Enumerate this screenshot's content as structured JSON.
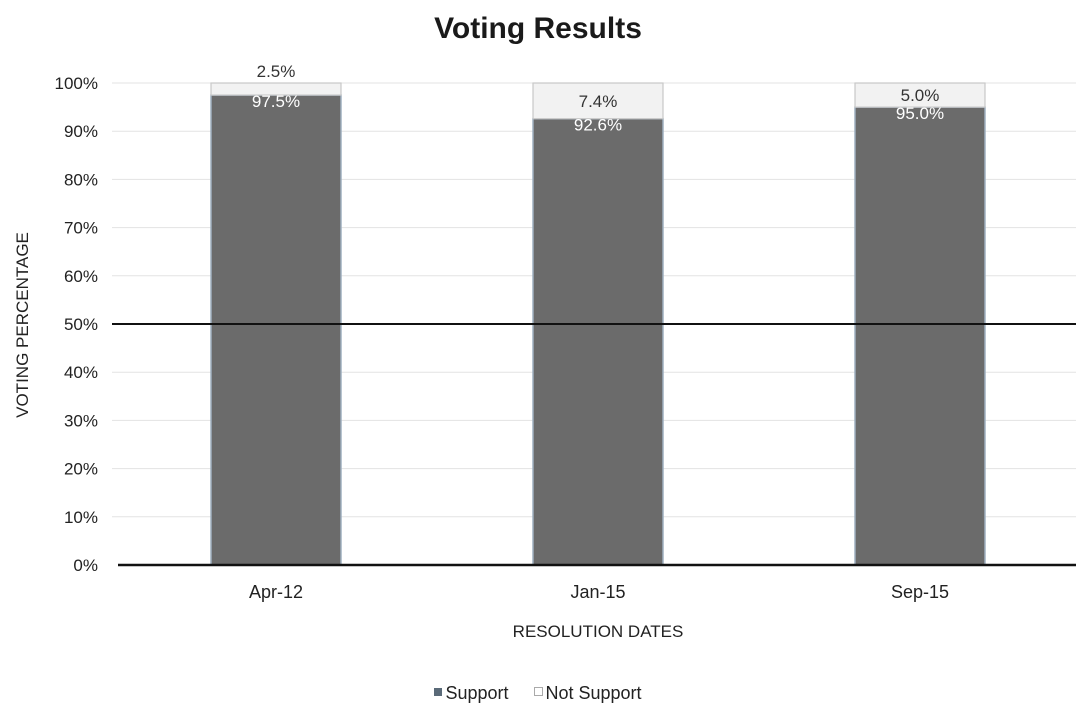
{
  "chart_data": {
    "type": "bar",
    "stacked": true,
    "title": "Voting Results",
    "xlabel": "RESOLUTION DATES",
    "ylabel": "VOTING PERCENTAGE",
    "categories": [
      "Apr-12",
      "Jan-15",
      "Sep-15"
    ],
    "series": [
      {
        "name": "Support",
        "values": [
          97.5,
          92.6,
          95.0
        ],
        "labels": [
          "97.5%",
          "92.6%",
          "95.0%"
        ],
        "color": "#6b6b6b"
      },
      {
        "name": "Not Support",
        "values": [
          2.5,
          7.4,
          5.0
        ],
        "labels": [
          "2.5%",
          "7.4%",
          "5.0%"
        ],
        "color": "#f2f2f2"
      }
    ],
    "ylim": [
      0,
      100
    ],
    "yticks": [
      0,
      10,
      20,
      30,
      40,
      50,
      60,
      70,
      80,
      90,
      100
    ],
    "ytick_labels": [
      "0%",
      "10%",
      "20%",
      "30%",
      "40%",
      "50%",
      "60%",
      "70%",
      "80%",
      "90%",
      "100%"
    ],
    "reference_line": 50,
    "grid": true,
    "legend_position": "bottom"
  }
}
